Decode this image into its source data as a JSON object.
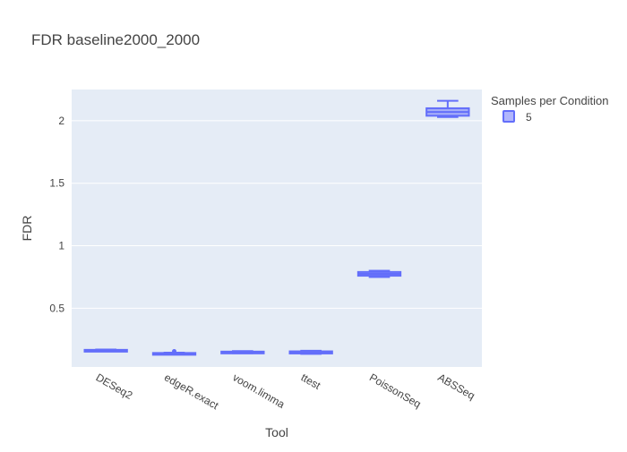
{
  "chart_data": {
    "type": "box",
    "title": "FDR baseline2000_2000",
    "xlabel": "Tool",
    "ylabel": "FDR",
    "categories": [
      "DESeq2",
      "edgeR.exact",
      "voom.limma",
      "ttest",
      "PoissonSeq",
      "ABSSeq"
    ],
    "y_ticks": [
      0.5,
      1,
      1.5,
      2
    ],
    "y_tick_labels": [
      "0.5",
      "1",
      "1.5",
      "2"
    ],
    "ylim": [
      0.03,
      2.25
    ],
    "grid": true,
    "legend": {
      "title": "Samples per Condition",
      "position": "top-right",
      "entries": [
        "5"
      ]
    },
    "series": [
      {
        "name": "5",
        "color": "#636efa",
        "boxes": [
          {
            "category": "DESeq2",
            "min": 0.155,
            "q1": 0.158,
            "median": 0.162,
            "q3": 0.167,
            "max": 0.17,
            "outliers": []
          },
          {
            "category": "edgeR.exact",
            "min": 0.13,
            "q1": 0.133,
            "median": 0.137,
            "q3": 0.142,
            "max": 0.145,
            "outliers": [
              0.155
            ]
          },
          {
            "category": "voom.limma",
            "min": 0.14,
            "q1": 0.143,
            "median": 0.148,
            "q3": 0.153,
            "max": 0.157,
            "outliers": []
          },
          {
            "category": "ttest",
            "min": 0.135,
            "q1": 0.138,
            "median": 0.145,
            "q3": 0.155,
            "max": 0.16,
            "outliers": []
          },
          {
            "category": "PoissonSeq",
            "min": 0.75,
            "q1": 0.76,
            "median": 0.775,
            "q3": 0.79,
            "max": 0.8,
            "outliers": []
          },
          {
            "category": "ABSSeq",
            "min": 2.03,
            "q1": 2.04,
            "median": 2.07,
            "q3": 2.1,
            "max": 2.16,
            "outliers": []
          }
        ]
      }
    ]
  }
}
